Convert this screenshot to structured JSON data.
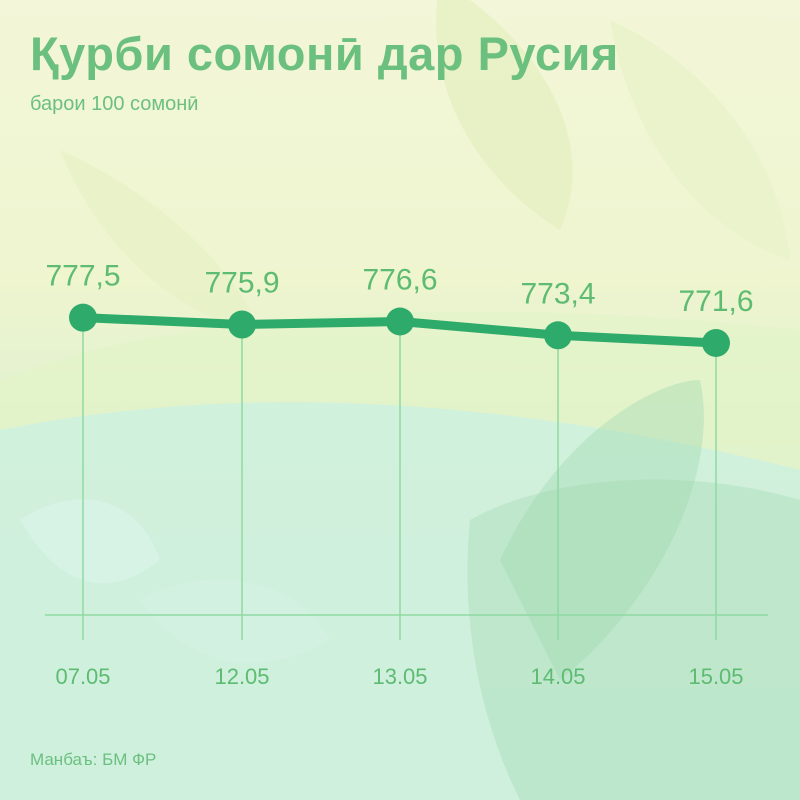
{
  "title": "Қурби сомонӣ дар Русия",
  "subtitle": "барои 100 сомонӣ",
  "source": "Манбаъ: БМ ФР",
  "colors": {
    "line": "#2eaa6a",
    "text": "#6cc07f",
    "grid": "#8fd9a2"
  },
  "chart_data": {
    "type": "line",
    "categories": [
      "07.05",
      "12.05",
      "13.05",
      "14.05",
      "15.05"
    ],
    "series": [
      {
        "values": [
          777.5,
          775.9,
          776.6,
          773.4,
          771.6
        ]
      }
    ],
    "labels": [
      "777,5",
      "775,9",
      "776,6",
      "773,4",
      "771,6"
    ],
    "title": "Қурби сомонӣ дар Русия",
    "subtitle": "барои 100 сомонӣ",
    "xlabel": "",
    "ylabel": "",
    "grid": false
  }
}
